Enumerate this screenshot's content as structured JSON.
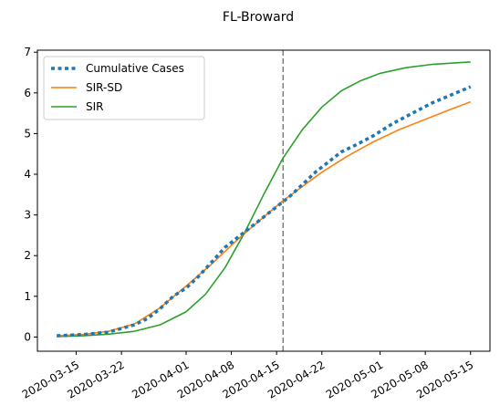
{
  "chart_data": {
    "type": "line",
    "title": "FL-Broward",
    "xlabel": "",
    "ylabel": "",
    "x_start": "2020-03-12",
    "x_end": "2020-05-15",
    "xlim": [
      "2020-03-09",
      "2020-05-18"
    ],
    "ylim": [
      -0.35,
      7.05
    ],
    "yticks": [
      0,
      1,
      2,
      3,
      4,
      5,
      6,
      7
    ],
    "xticks": [
      "2020-03-15",
      "2020-03-22",
      "2020-04-01",
      "2020-04-08",
      "2020-04-15",
      "2020-04-22",
      "2020-05-01",
      "2020-05-08",
      "2020-05-15"
    ],
    "vline": {
      "x": "2020-04-16",
      "style": "dashed",
      "color": "#7f7f7f"
    },
    "legend_position": "top-left",
    "grid": false,
    "series": [
      {
        "name": "Cumulative Cases",
        "style": "dotted",
        "color": "#1f77b4",
        "x": [
          "2020-03-12",
          "2020-03-16",
          "2020-03-20",
          "2020-03-24",
          "2020-03-26",
          "2020-03-28",
          "2020-03-30",
          "2020-04-01",
          "2020-04-03",
          "2020-04-05",
          "2020-04-07",
          "2020-04-09",
          "2020-04-11",
          "2020-04-13",
          "2020-04-15",
          "2020-04-17",
          "2020-04-19",
          "2020-04-21",
          "2020-04-23",
          "2020-04-25",
          "2020-04-27",
          "2020-04-30",
          "2020-05-03",
          "2020-05-06",
          "2020-05-09",
          "2020-05-12",
          "2020-05-15"
        ],
        "values": [
          0.03,
          0.06,
          0.12,
          0.3,
          0.45,
          0.7,
          1.0,
          1.2,
          1.5,
          1.85,
          2.2,
          2.45,
          2.7,
          2.95,
          3.2,
          3.45,
          3.75,
          4.05,
          4.3,
          4.55,
          4.7,
          4.95,
          5.25,
          5.5,
          5.75,
          5.95,
          6.15
        ]
      },
      {
        "name": "SIR-SD",
        "style": "solid",
        "color": "#ff7f0e",
        "x": [
          "2020-03-12",
          "2020-03-16",
          "2020-03-20",
          "2020-03-24",
          "2020-03-28",
          "2020-04-01",
          "2020-04-05",
          "2020-04-09",
          "2020-04-13",
          "2020-04-16",
          "2020-04-19",
          "2020-04-22",
          "2020-04-26",
          "2020-04-30",
          "2020-05-04",
          "2020-05-08",
          "2020-05-12",
          "2020-05-15"
        ],
        "values": [
          0.03,
          0.06,
          0.14,
          0.32,
          0.72,
          1.25,
          1.8,
          2.4,
          2.95,
          3.35,
          3.7,
          4.05,
          4.45,
          4.8,
          5.1,
          5.35,
          5.6,
          5.78
        ]
      },
      {
        "name": "SIR",
        "style": "solid",
        "color": "#2ca02c",
        "x": [
          "2020-03-12",
          "2020-03-16",
          "2020-03-20",
          "2020-03-24",
          "2020-03-28",
          "2020-04-01",
          "2020-04-04",
          "2020-04-07",
          "2020-04-10",
          "2020-04-13",
          "2020-04-16",
          "2020-04-19",
          "2020-04-22",
          "2020-04-25",
          "2020-04-28",
          "2020-05-01",
          "2020-05-05",
          "2020-05-09",
          "2020-05-15"
        ],
        "values": [
          0.01,
          0.03,
          0.07,
          0.14,
          0.3,
          0.62,
          1.05,
          1.7,
          2.55,
          3.5,
          4.4,
          5.1,
          5.65,
          6.05,
          6.3,
          6.48,
          6.62,
          6.7,
          6.76
        ]
      }
    ]
  }
}
